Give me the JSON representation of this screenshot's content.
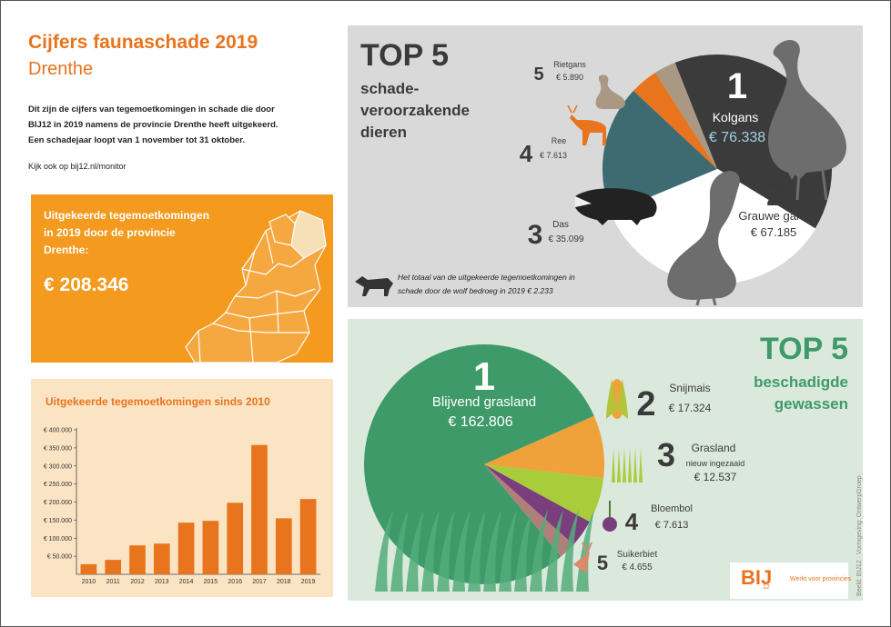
{
  "header": {
    "title": "Cijfers faunaschade 2019",
    "subtitle": "Drenthe"
  },
  "intro": {
    "lines": [
      "Dit zijn de cijfers van tegemoetkomingen in schade die door",
      "BIJ12 in 2019 namens de provincie Drenthe heeft uitgekeerd.",
      "Een schadejaar loopt van 1 november tot 31 oktober."
    ],
    "link": "Kijk ook op bij12.nl/monitor"
  },
  "total": {
    "lines": [
      "Uitgekeerde tegemoetkomingen",
      "in 2019 door de provincie",
      "Drenthe:"
    ],
    "amount": "€ 208.346",
    "colors": {
      "box": "#f39a1f",
      "highlight": "#f7dfb8"
    }
  },
  "chart_data": {
    "type": "bar",
    "title": "Uitgekeerde tegemoetkomingen sinds 2010",
    "categories": [
      "2010",
      "2011",
      "2012",
      "2013",
      "2014",
      "2015",
      "2016",
      "2017",
      "2018",
      "2019"
    ],
    "values": [
      28000,
      40000,
      80000,
      85000,
      143000,
      148000,
      198000,
      358000,
      155000,
      208346
    ],
    "ylim": [
      0,
      400000
    ],
    "yticks": [
      {
        "value": 50000,
        "label": "€ 50.000"
      },
      {
        "value": 100000,
        "label": "€ 100.000"
      },
      {
        "value": 150000,
        "label": "€ 150.000"
      },
      {
        "value": 200000,
        "label": "€ 200.000"
      },
      {
        "value": 250000,
        "label": "€ 250.000"
      },
      {
        "value": 300000,
        "label": "€ 300.000"
      },
      {
        "value": 350000,
        "label": "€ 350.000"
      },
      {
        "value": 400000,
        "label": "€ 400.000"
      }
    ],
    "bar_color": "#e8741e",
    "grid": false
  },
  "animals": {
    "heading": "TOP 5",
    "sub": [
      "schade-",
      "veroorzakende",
      "dieren"
    ],
    "pie": {
      "type": "pie",
      "slices": [
        {
          "rank": "1",
          "name": "Kolgans",
          "value": 76338,
          "label": "€ 76.338",
          "color": "#3b3b3b"
        },
        {
          "rank": "2",
          "name": "Grauwe gans",
          "value": 67185,
          "label": "€ 67.185",
          "color": "#ffffff"
        },
        {
          "rank": "3",
          "name": "Das",
          "value": 35099,
          "label": "€ 35.099",
          "color": "#3e6b72"
        },
        {
          "rank": "4",
          "name": "Ree",
          "value": 7613,
          "label": "€ 7.613",
          "color": "#e8741e"
        },
        {
          "rank": "5",
          "name": "Rietgans",
          "value": 5890,
          "label": "€ 5.890",
          "color": "#a99884"
        }
      ]
    },
    "wolf_note": [
      "Het totaal van de uitgekeerde tegemoetkomingen in",
      "schade door de wolf bedroeg in 2019 € 2.233"
    ],
    "icons": [
      "goose-icon",
      "badger-icon",
      "deer-icon",
      "wolf-icon"
    ]
  },
  "crops": {
    "heading": "TOP 5",
    "sub": [
      "beschadigde",
      "gewassen"
    ],
    "pie": {
      "type": "pie",
      "slices": [
        {
          "rank": "1",
          "name": "Blijvend grasland",
          "value": 162806,
          "label": "€ 162.806",
          "color": "#3f9a6a"
        },
        {
          "rank": "2",
          "name": "Snijmais",
          "value": 17324,
          "label": "€ 17.324",
          "color": "#f0a23a"
        },
        {
          "rank": "3",
          "name": "Grasland",
          "note": "nieuw ingezaaid",
          "value": 12537,
          "label": "€ 12.537",
          "color": "#a9cc3a"
        },
        {
          "rank": "4",
          "name": "Bloembol",
          "value": 7613,
          "label": "€ 7.613",
          "color": "#7a3e7d"
        },
        {
          "rank": "5",
          "name": "Suikerbiet",
          "value": 4655,
          "label": "€ 4.655",
          "color": "#b07f7a"
        }
      ]
    },
    "icons": [
      "corn-icon",
      "grass-icon",
      "tulip-bulb-icon",
      "beet-icon"
    ]
  },
  "logo": {
    "text": "BIJ",
    "sub": "12",
    "tagline": "Werkt voor provincies"
  },
  "credits": "Beeld: BIJ12 · Vormgeving: OntwerpGroep"
}
